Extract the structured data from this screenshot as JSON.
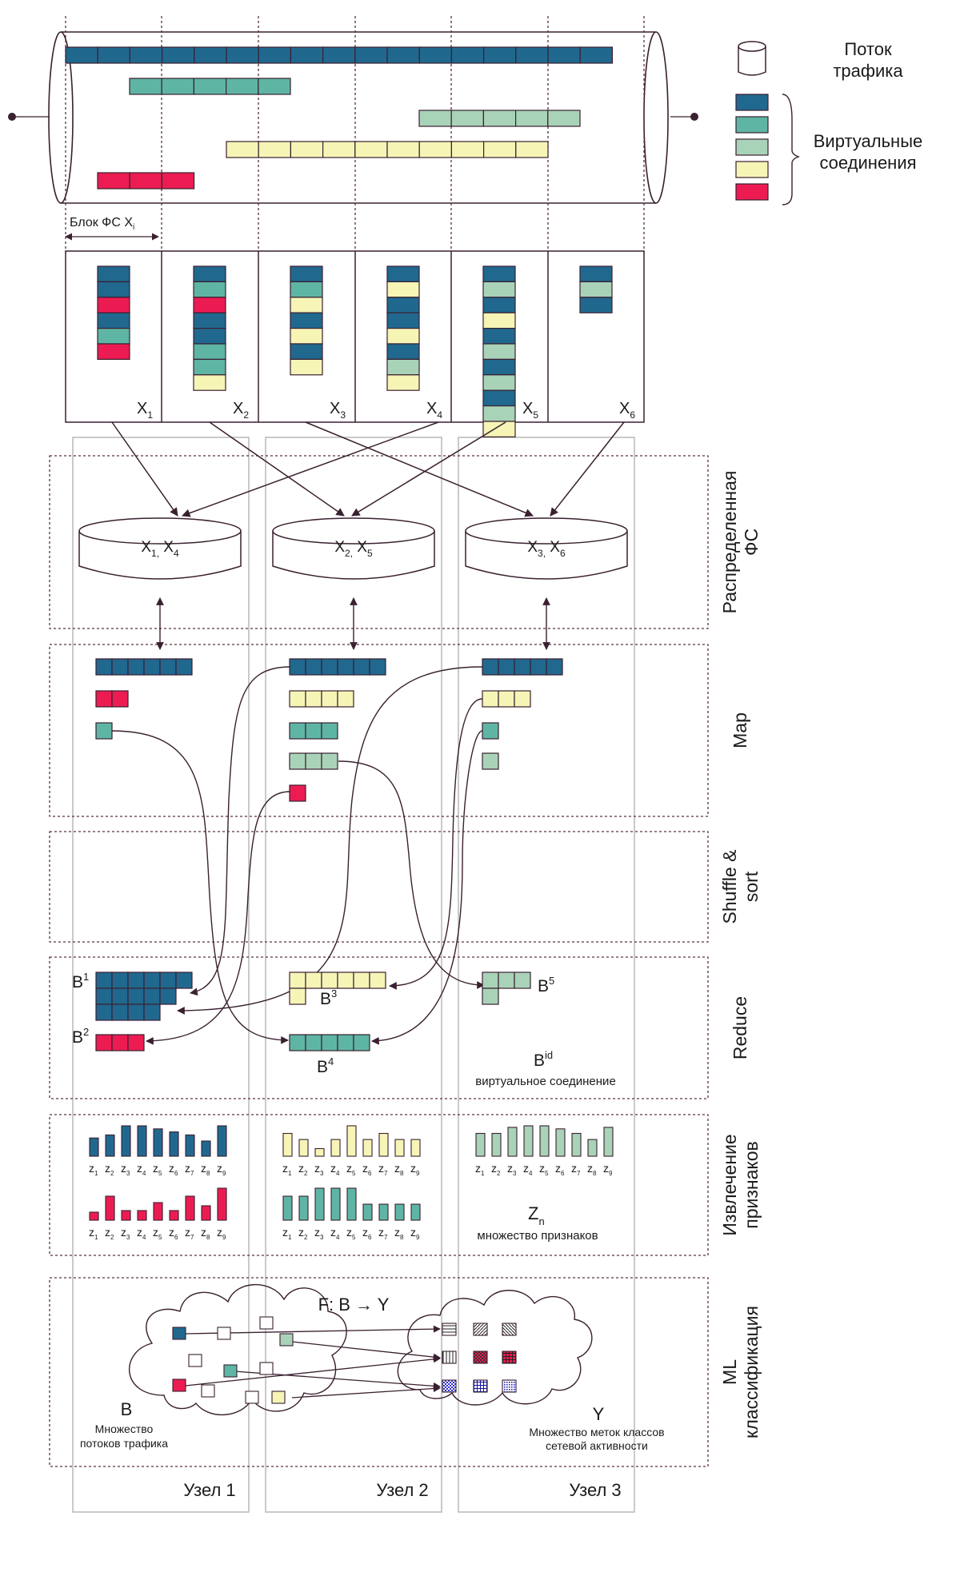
{
  "colors": {
    "dark_blue": "#21688f",
    "teal": "#5fb5a3",
    "mint": "#a9d3b8",
    "yellow": "#f6f5b6",
    "red": "#ec1c52",
    "outline": "#3a2030"
  },
  "legend": {
    "stream_label": "Поток трафика",
    "vc_label": "Виртуальные соединения"
  },
  "block_label": "Блок ФС X",
  "block_sub": "i",
  "blocks": [
    {
      "name": "X",
      "sub": "1"
    },
    {
      "name": "X",
      "sub": "2"
    },
    {
      "name": "X",
      "sub": "3"
    },
    {
      "name": "X",
      "sub": "4"
    },
    {
      "name": "X",
      "sub": "5"
    },
    {
      "name": "X",
      "sub": "6"
    }
  ],
  "fs_nodes": [
    {
      "a": "X",
      "a_sub": "1,",
      "b": "X",
      "b_sub": "4"
    },
    {
      "a": "X",
      "a_sub": "2,",
      "b": "X",
      "b_sub": "5"
    },
    {
      "a": "X",
      "a_sub": "3,",
      "b": "X",
      "b_sub": "6"
    }
  ],
  "stages": [
    {
      "label": "Распределенная ФС"
    },
    {
      "label": "Map"
    },
    {
      "label": "Shuffle & sort"
    },
    {
      "label": "Reduce"
    },
    {
      "label": "Извлечение признаков"
    },
    {
      "label": "ML классификация"
    }
  ],
  "reduce": {
    "b1": "B",
    "b1_sup": "1",
    "b2": "B",
    "b2_sup": "2",
    "b3": "B",
    "b3_sup": "3",
    "b4": "B",
    "b4_sup": "4",
    "b5": "B",
    "b5_sup": "5",
    "bid": "B",
    "bid_sup": "id",
    "bid_caption": "виртуальное соединение"
  },
  "features": {
    "z": "z",
    "indices": [
      "1",
      "2",
      "3",
      "4",
      "5",
      "6",
      "7",
      "8",
      "9"
    ],
    "zn": "Z",
    "zn_sub": "n",
    "zn_caption": "множество признаков",
    "blue_levels": [
      0.6,
      0.7,
      1.0,
      1.0,
      0.9,
      0.8,
      0.7,
      0.5,
      1.0
    ],
    "red_levels": [
      0.25,
      0.75,
      0.3,
      0.3,
      0.55,
      0.3,
      0.75,
      0.45,
      1.0
    ],
    "yellow_levels": [
      0.75,
      0.55,
      0.25,
      0.55,
      1.0,
      0.55,
      0.75,
      0.55,
      0.55
    ],
    "teal_levels": [
      0.75,
      0.75,
      1.0,
      1.0,
      1.0,
      0.5,
      0.5,
      0.5,
      0.5
    ],
    "mint_levels": [
      0.75,
      0.75,
      0.95,
      1.0,
      1.0,
      0.9,
      0.75,
      0.55,
      0.95
    ]
  },
  "ml": {
    "func": "F: B → Y",
    "b_letter": "B",
    "b_caption1": "Множество",
    "b_caption2": "потоков трафика",
    "y_letter": "Y",
    "y_caption1": "Множество меток классов",
    "y_caption2": "сетевой активности"
  },
  "nodes": [
    "Узел 1",
    "Узел 2",
    "Узел 3"
  ]
}
